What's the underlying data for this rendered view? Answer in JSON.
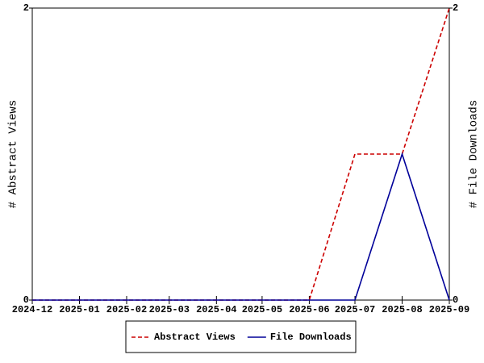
{
  "chart_data": {
    "type": "line",
    "x": [
      "2024-12",
      "2025-01",
      "2025-02",
      "2025-03",
      "2025-04",
      "2025-05",
      "2025-06",
      "2025-07",
      "2025-08",
      "2025-09"
    ],
    "series": [
      {
        "name": "Abstract Views",
        "color": "#cc0000",
        "dash": true,
        "values": [
          0,
          0,
          0,
          0,
          0,
          0,
          0,
          1,
          1,
          2
        ]
      },
      {
        "name": "File Downloads",
        "color": "#000099",
        "axis": "y2",
        "values": [
          0,
          0,
          0,
          0,
          0,
          0,
          0,
          0,
          1,
          0
        ]
      }
    ],
    "ylabel": "# Abstract Views",
    "y2label": "# File Downloads",
    "ylim": [
      0,
      2
    ],
    "yticks": [
      0,
      2
    ],
    "y2lim": [
      0,
      2
    ],
    "y2ticks": [
      0,
      2
    ],
    "legend": "bottom"
  }
}
